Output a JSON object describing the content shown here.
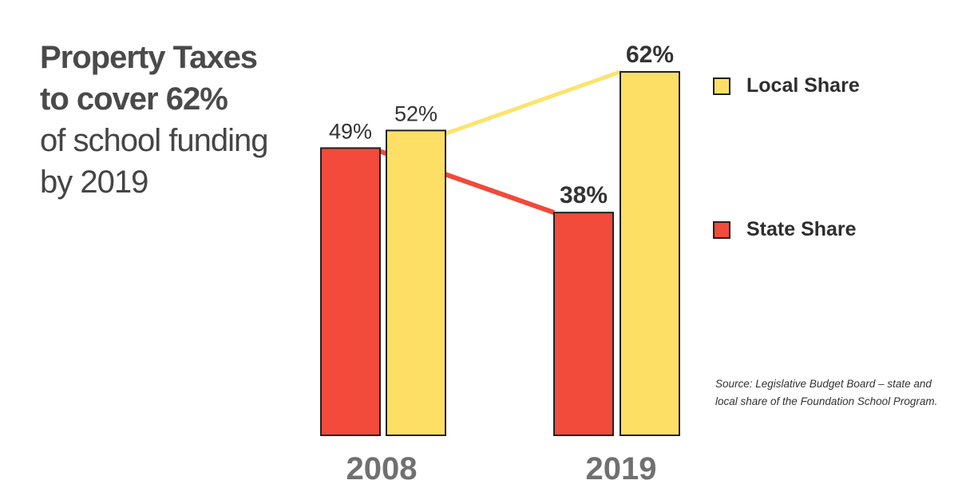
{
  "headline": {
    "line1": "Property Taxes",
    "line2": "to cover 62%",
    "line3": "of school funding",
    "line4": "by 2019"
  },
  "source": "Source: Legislative Budget Board – state and local share of the Foundation School Program.",
  "colors": {
    "local": "#FDDF66",
    "state": "#F24A3B",
    "local_line": "#FBE36E",
    "state_line": "#F04A3A",
    "axis_text": "#707070"
  },
  "chart_data": {
    "type": "bar",
    "categories": [
      "2008",
      "2019"
    ],
    "series": [
      {
        "name": "Local Share",
        "key": "local",
        "values": [
          52,
          62
        ],
        "labels": [
          "52%",
          "62%"
        ]
      },
      {
        "name": "State Share",
        "key": "state",
        "values": [
          49,
          38
        ],
        "labels": [
          "49%",
          "38%"
        ]
      }
    ],
    "title": "Property Taxes to cover 62% of school funding by 2019",
    "ylim": [
      0,
      65
    ],
    "grid": false,
    "legend": "right",
    "connector_lines": true
  }
}
